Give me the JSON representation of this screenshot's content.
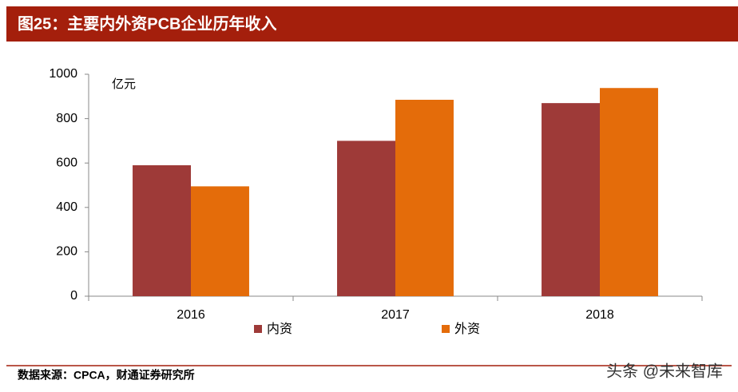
{
  "chart_data": {
    "type": "bar",
    "title": "图25：主要内外资PCB企业历年收入",
    "y_unit": "亿元",
    "categories": [
      "2016",
      "2017",
      "2018"
    ],
    "series": [
      {
        "name": "内资",
        "color": "#9e3a38",
        "values": [
          590,
          700,
          870
        ]
      },
      {
        "name": "外资",
        "color": "#e46c0a",
        "values": [
          495,
          885,
          938
        ]
      }
    ],
    "ylim": [
      0,
      1000
    ],
    "yticks": [
      0,
      200,
      400,
      600,
      800,
      1000
    ],
    "legend": "bottom",
    "source": "数据来源：CPCA，财通证券研究所",
    "watermark": "头条 @未来智库"
  }
}
